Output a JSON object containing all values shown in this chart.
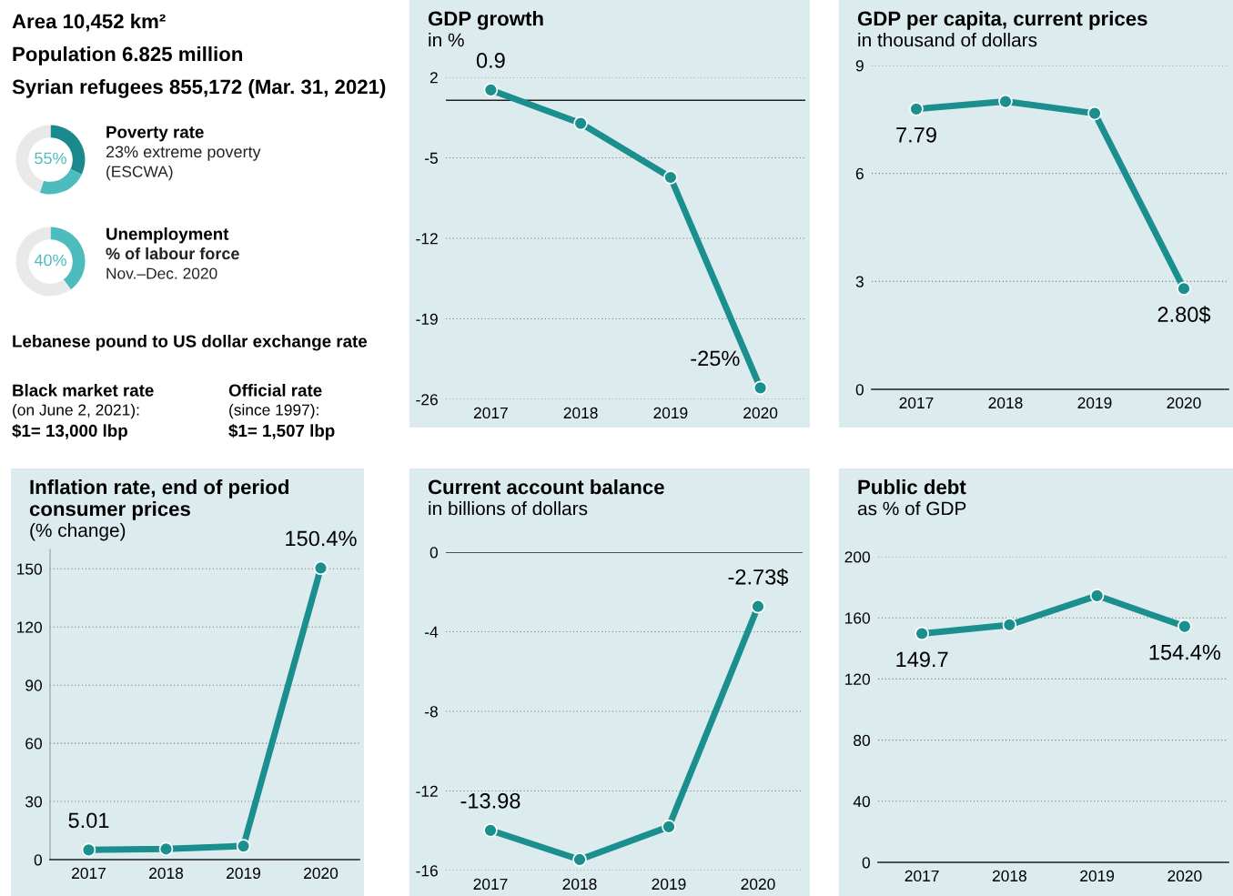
{
  "chart_data": [
    {
      "type": "other",
      "annotations": [
        "Area 10,452 km²",
        "Population 6.825 million",
        "Syrian refugees 855,172 (Mar. 31, 2021)"
      ]
    },
    {
      "type": "donut",
      "title": "Poverty rate",
      "categories": [
        null,
        null,
        null
      ],
      "values": [
        32,
        23,
        45
      ],
      "colors": [
        "#1b8a8c",
        "#4dbcbd",
        "#e9e9e9"
      ],
      "annotations": [
        "55%",
        "23% extreme poverty",
        "(ESCWA)"
      ]
    },
    {
      "type": "donut",
      "title": "Unemployment",
      "categories": [
        null,
        null
      ],
      "values": [
        40,
        60
      ],
      "colors": [
        "#4dbcbd",
        "#e9e9e9"
      ],
      "annotations": [
        "40%",
        "% of labour force",
        "Nov.–Dec. 2020"
      ]
    },
    {
      "type": "other",
      "title": "Lebanese pound to US dollar exchange rate",
      "annotations": [
        "Black market rate",
        "(on June 2, 2021):",
        "$1= 13,000 lbp",
        "Official rate",
        "(since 1997):",
        "$1= 1,507 lbp"
      ]
    },
    {
      "type": "line",
      "title": "GDP growth",
      "subtitle": "in %",
      "categories": [
        "2017",
        "2018",
        "2019",
        "2020"
      ],
      "ylim": [
        -26,
        2
      ],
      "yticks": [
        2,
        -5,
        -12,
        -19,
        -26
      ],
      "grid": "y",
      "marker": "circle",
      "ref_lines": [
        {
          "axis": "y",
          "value": 0,
          "color": "#222222"
        }
      ],
      "series": [
        {
          "color": "#1b8e8e",
          "values": [
            0.9,
            -2.0,
            -6.7,
            -25
          ],
          "value_labels": [
            "0.9",
            null,
            null,
            "-25%"
          ]
        }
      ]
    },
    {
      "type": "line",
      "title": "GDP per capita, current prices",
      "subtitle": "in thousand of dollars",
      "categories": [
        "2017",
        "2018",
        "2019",
        "2020"
      ],
      "ylim": [
        0,
        9
      ],
      "yticks": [
        0,
        3,
        6,
        9
      ],
      "grid": "y",
      "marker": "circle",
      "series": [
        {
          "color": "#1b8e8e",
          "values": [
            7.79,
            8.0,
            7.67,
            2.8
          ],
          "value_labels": [
            "7.79",
            null,
            null,
            "2.80$"
          ]
        }
      ]
    },
    {
      "type": "line",
      "title": "Inflation rate, end of period consumer prices",
      "subtitle": "(% change)",
      "categories": [
        "2017",
        "2018",
        "2019",
        "2020"
      ],
      "ylim": [
        0,
        160
      ],
      "yticks": [
        0,
        30,
        60,
        90,
        120,
        150
      ],
      "grid": "y",
      "marker": "circle",
      "series": [
        {
          "color": "#1b8e8e",
          "values": [
            5.01,
            5.5,
            7.0,
            150.4
          ],
          "value_labels": [
            "5.01",
            null,
            null,
            "150.4%"
          ]
        }
      ]
    },
    {
      "type": "line",
      "title": "Current account balance",
      "subtitle": "in billions of dollars",
      "categories": [
        "2017",
        "2018",
        "2019",
        "2020"
      ],
      "ylim": [
        -16,
        0
      ],
      "yticks": [
        0,
        -4,
        -8,
        -12,
        -16
      ],
      "grid": "y",
      "marker": "circle",
      "ref_lines": [
        {
          "axis": "y",
          "value": 0,
          "color": "#222222"
        }
      ],
      "series": [
        {
          "color": "#1b8e8e",
          "values": [
            -13.98,
            -15.45,
            -13.8,
            -2.73
          ],
          "value_labels": [
            "-13.98",
            null,
            null,
            "-2.73$"
          ]
        }
      ]
    },
    {
      "type": "line",
      "title": "Public debt",
      "subtitle": "as % of GDP",
      "categories": [
        "2017",
        "2018",
        "2019",
        "2020"
      ],
      "ylim": [
        0,
        200
      ],
      "yticks": [
        0,
        40,
        80,
        120,
        160,
        200
      ],
      "grid": "y",
      "marker": "circle",
      "series": [
        {
          "color": "#1b8e8e",
          "values": [
            149.7,
            155.4,
            174.5,
            154.4
          ],
          "value_labels": [
            "149.7",
            null,
            null,
            "154.4%"
          ]
        }
      ]
    }
  ]
}
